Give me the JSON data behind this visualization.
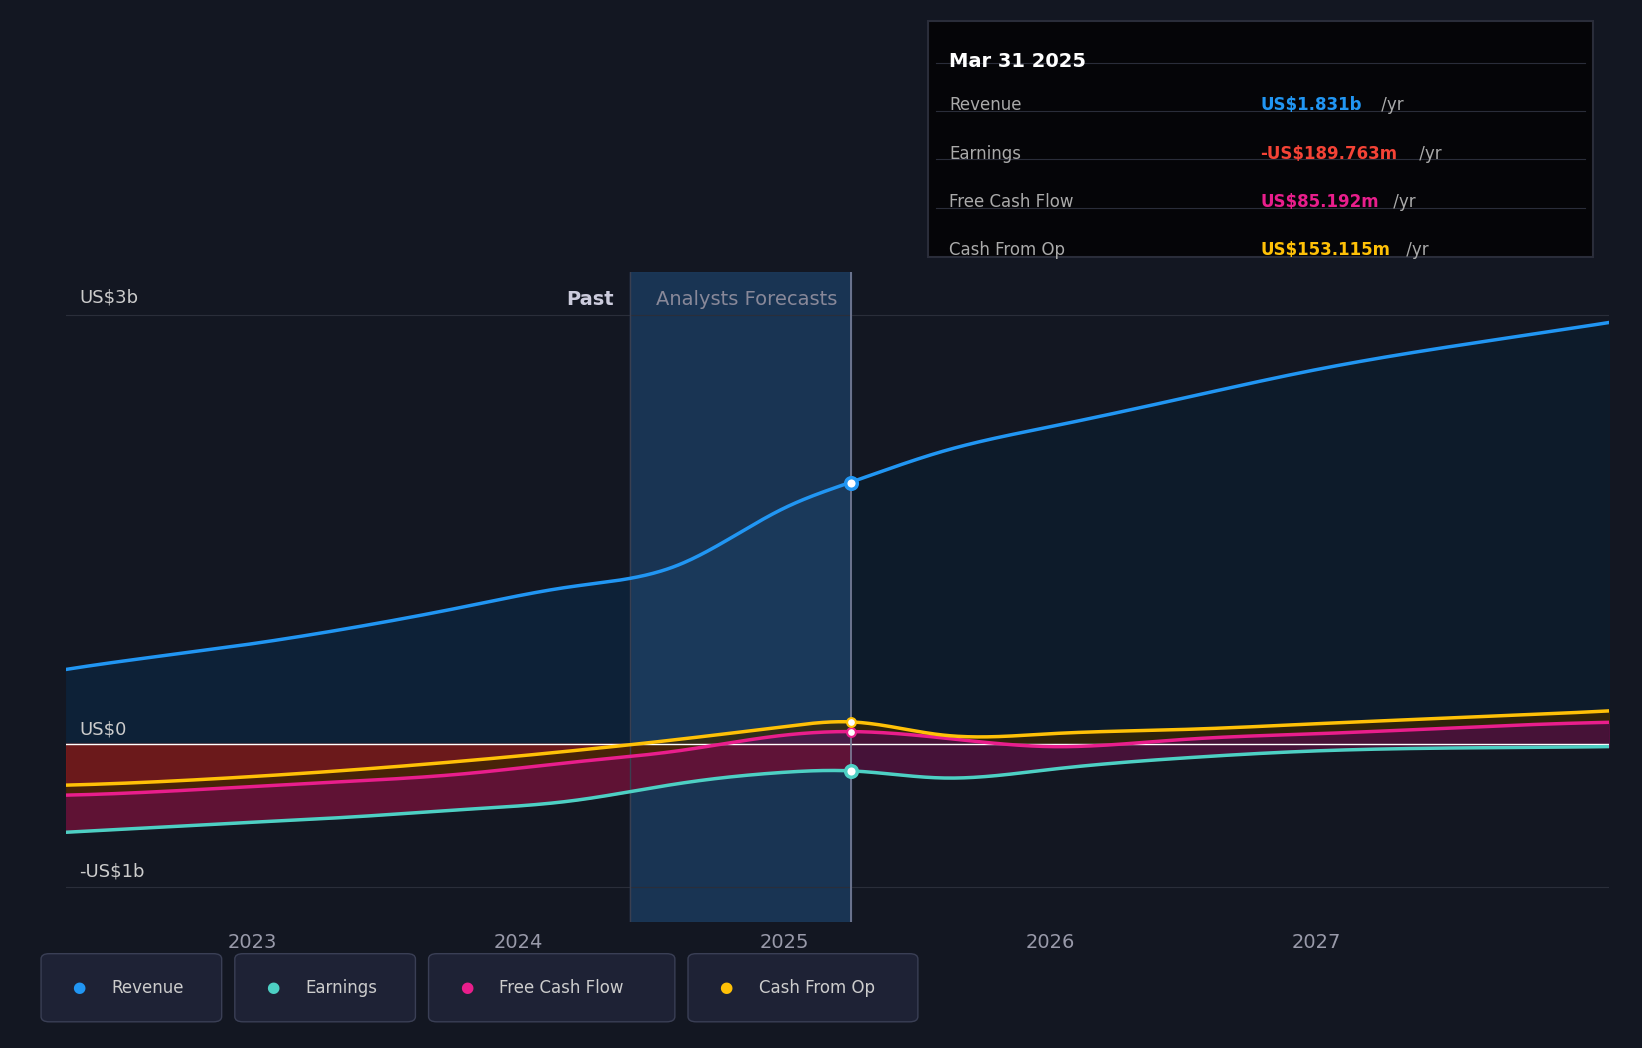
{
  "bg_color": "#131722",
  "plot_bg_color": "#131722",
  "tooltip_date": "Mar 31 2025",
  "tooltip_items": [
    {
      "label": "Revenue",
      "value": "US$1.831b",
      "unit": " /yr",
      "color": "#2196f3"
    },
    {
      "label": "Earnings",
      "value": "-US$189.763m",
      "unit": " /yr",
      "color": "#f44336"
    },
    {
      "label": "Free Cash Flow",
      "value": "US$85.192m",
      "unit": " /yr",
      "color": "#e91e8c"
    },
    {
      "label": "Cash From Op",
      "value": "US$153.115m",
      "unit": " /yr",
      "color": "#ffc107"
    }
  ],
  "ylabel_us3b": "US$3b",
  "ylabel_us0": "US$0",
  "ylabel_us1b": "-US$1b",
  "past_label": "Past",
  "forecast_label": "Analysts Forecasts",
  "vertical_line_x": 2025.25,
  "past_cutoff_x": 2024.42,
  "x_min": 2022.3,
  "x_max": 2028.1,
  "y_min": -1.25,
  "y_max": 3.3,
  "grid_color": "#2a2e3a",
  "revenue_color": "#2196f3",
  "earnings_color": "#4dd0c4",
  "fcf_color": "#e91e8c",
  "cashop_color": "#ffc107",
  "legend_items": [
    {
      "label": "Revenue",
      "color": "#2196f3"
    },
    {
      "label": "Earnings",
      "color": "#4dd0c4"
    },
    {
      "label": "Free Cash Flow",
      "color": "#e91e8c"
    },
    {
      "label": "Cash From Op",
      "color": "#ffc107"
    }
  ],
  "revenue_x": [
    2022.3,
    2022.6,
    2023.0,
    2023.4,
    2023.8,
    2024.2,
    2024.6,
    2025.0,
    2025.25,
    2025.6,
    2026.0,
    2026.5,
    2027.0,
    2027.5,
    2028.1
  ],
  "revenue_y": [
    0.52,
    0.6,
    0.7,
    0.82,
    0.96,
    1.1,
    1.25,
    1.65,
    1.831,
    2.05,
    2.22,
    2.42,
    2.62,
    2.78,
    2.95
  ],
  "earnings_x": [
    2022.3,
    2022.6,
    2023.0,
    2023.4,
    2023.8,
    2024.2,
    2024.6,
    2025.0,
    2025.25,
    2025.6,
    2026.0,
    2026.5,
    2027.0,
    2027.5,
    2028.1
  ],
  "earnings_y": [
    -0.62,
    -0.59,
    -0.55,
    -0.51,
    -0.46,
    -0.4,
    -0.28,
    -0.2,
    -0.19,
    -0.24,
    -0.18,
    -0.1,
    -0.05,
    -0.03,
    -0.02
  ],
  "fcf_x": [
    2022.3,
    2022.6,
    2023.0,
    2023.4,
    2023.8,
    2024.2,
    2024.6,
    2025.0,
    2025.25,
    2025.6,
    2026.0,
    2026.5,
    2027.0,
    2027.5,
    2028.1
  ],
  "fcf_y": [
    -0.36,
    -0.34,
    -0.3,
    -0.26,
    -0.21,
    -0.13,
    -0.05,
    0.06,
    0.085,
    0.04,
    -0.02,
    0.03,
    0.07,
    0.11,
    0.15
  ],
  "cashop_x": [
    2022.3,
    2022.6,
    2023.0,
    2023.4,
    2023.8,
    2024.2,
    2024.6,
    2025.0,
    2025.25,
    2025.6,
    2026.0,
    2026.5,
    2027.0,
    2027.5,
    2028.1
  ],
  "cashop_y": [
    -0.29,
    -0.27,
    -0.23,
    -0.18,
    -0.12,
    -0.05,
    0.03,
    0.12,
    0.153,
    0.06,
    0.07,
    0.1,
    0.14,
    0.18,
    0.23
  ]
}
